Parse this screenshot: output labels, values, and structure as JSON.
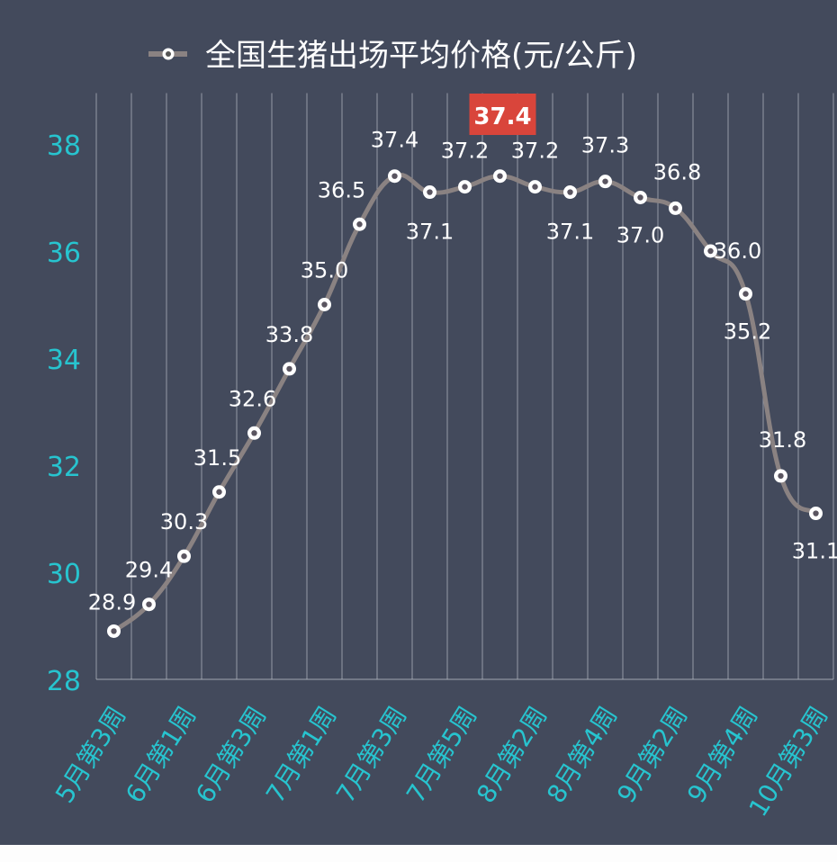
{
  "chart_data": {
    "type": "line",
    "title": "",
    "legend": {
      "entries": [
        "全国生猪出场平均价格(元/公斤)"
      ],
      "placement": "top"
    },
    "categories": [
      "5月第3周",
      "",
      "6月第1周",
      "",
      "6月第3周",
      "",
      "7月第1周",
      "",
      "7月第3周",
      "",
      "7月第5周",
      "",
      "8月第2周",
      "",
      "8月第4周",
      "",
      "9月第2周",
      "",
      "9月第4周",
      "",
      "10月第3周"
    ],
    "series": [
      {
        "name": "全国生猪出场平均价格(元/公斤)",
        "values": [
          28.9,
          29.4,
          30.3,
          31.5,
          32.6,
          33.8,
          35.0,
          36.5,
          37.4,
          37.1,
          37.2,
          37.4,
          37.2,
          37.1,
          37.3,
          37.0,
          36.8,
          36.0,
          35.2,
          31.8,
          31.1
        ],
        "labels": [
          "28.9",
          "29.4",
          "30.3",
          "31.5",
          "32.6",
          "33.8",
          "35.0",
          "36.5",
          "37.4",
          "37.1",
          "37.2",
          "37.4",
          "37.2",
          "37.1",
          "37.3",
          "37.0",
          "36.8",
          "36.0",
          "35.2",
          "31.8",
          "31.1"
        ]
      }
    ],
    "highlight": {
      "index": 11,
      "label": "37.4",
      "color": "#d9453b"
    },
    "yticks": [
      "28",
      "30",
      "32",
      "34",
      "36",
      "38"
    ],
    "ylim": [
      28,
      39
    ],
    "grid": {
      "vertical": true,
      "horizontal": false
    },
    "xlabel": "",
    "ylabel": "",
    "colors": {
      "background": "#434a5c",
      "line": "#8a8282",
      "axis_text": "#27c4cf",
      "label_text": "#ffffff",
      "gridline": "#b8bcc6"
    }
  }
}
